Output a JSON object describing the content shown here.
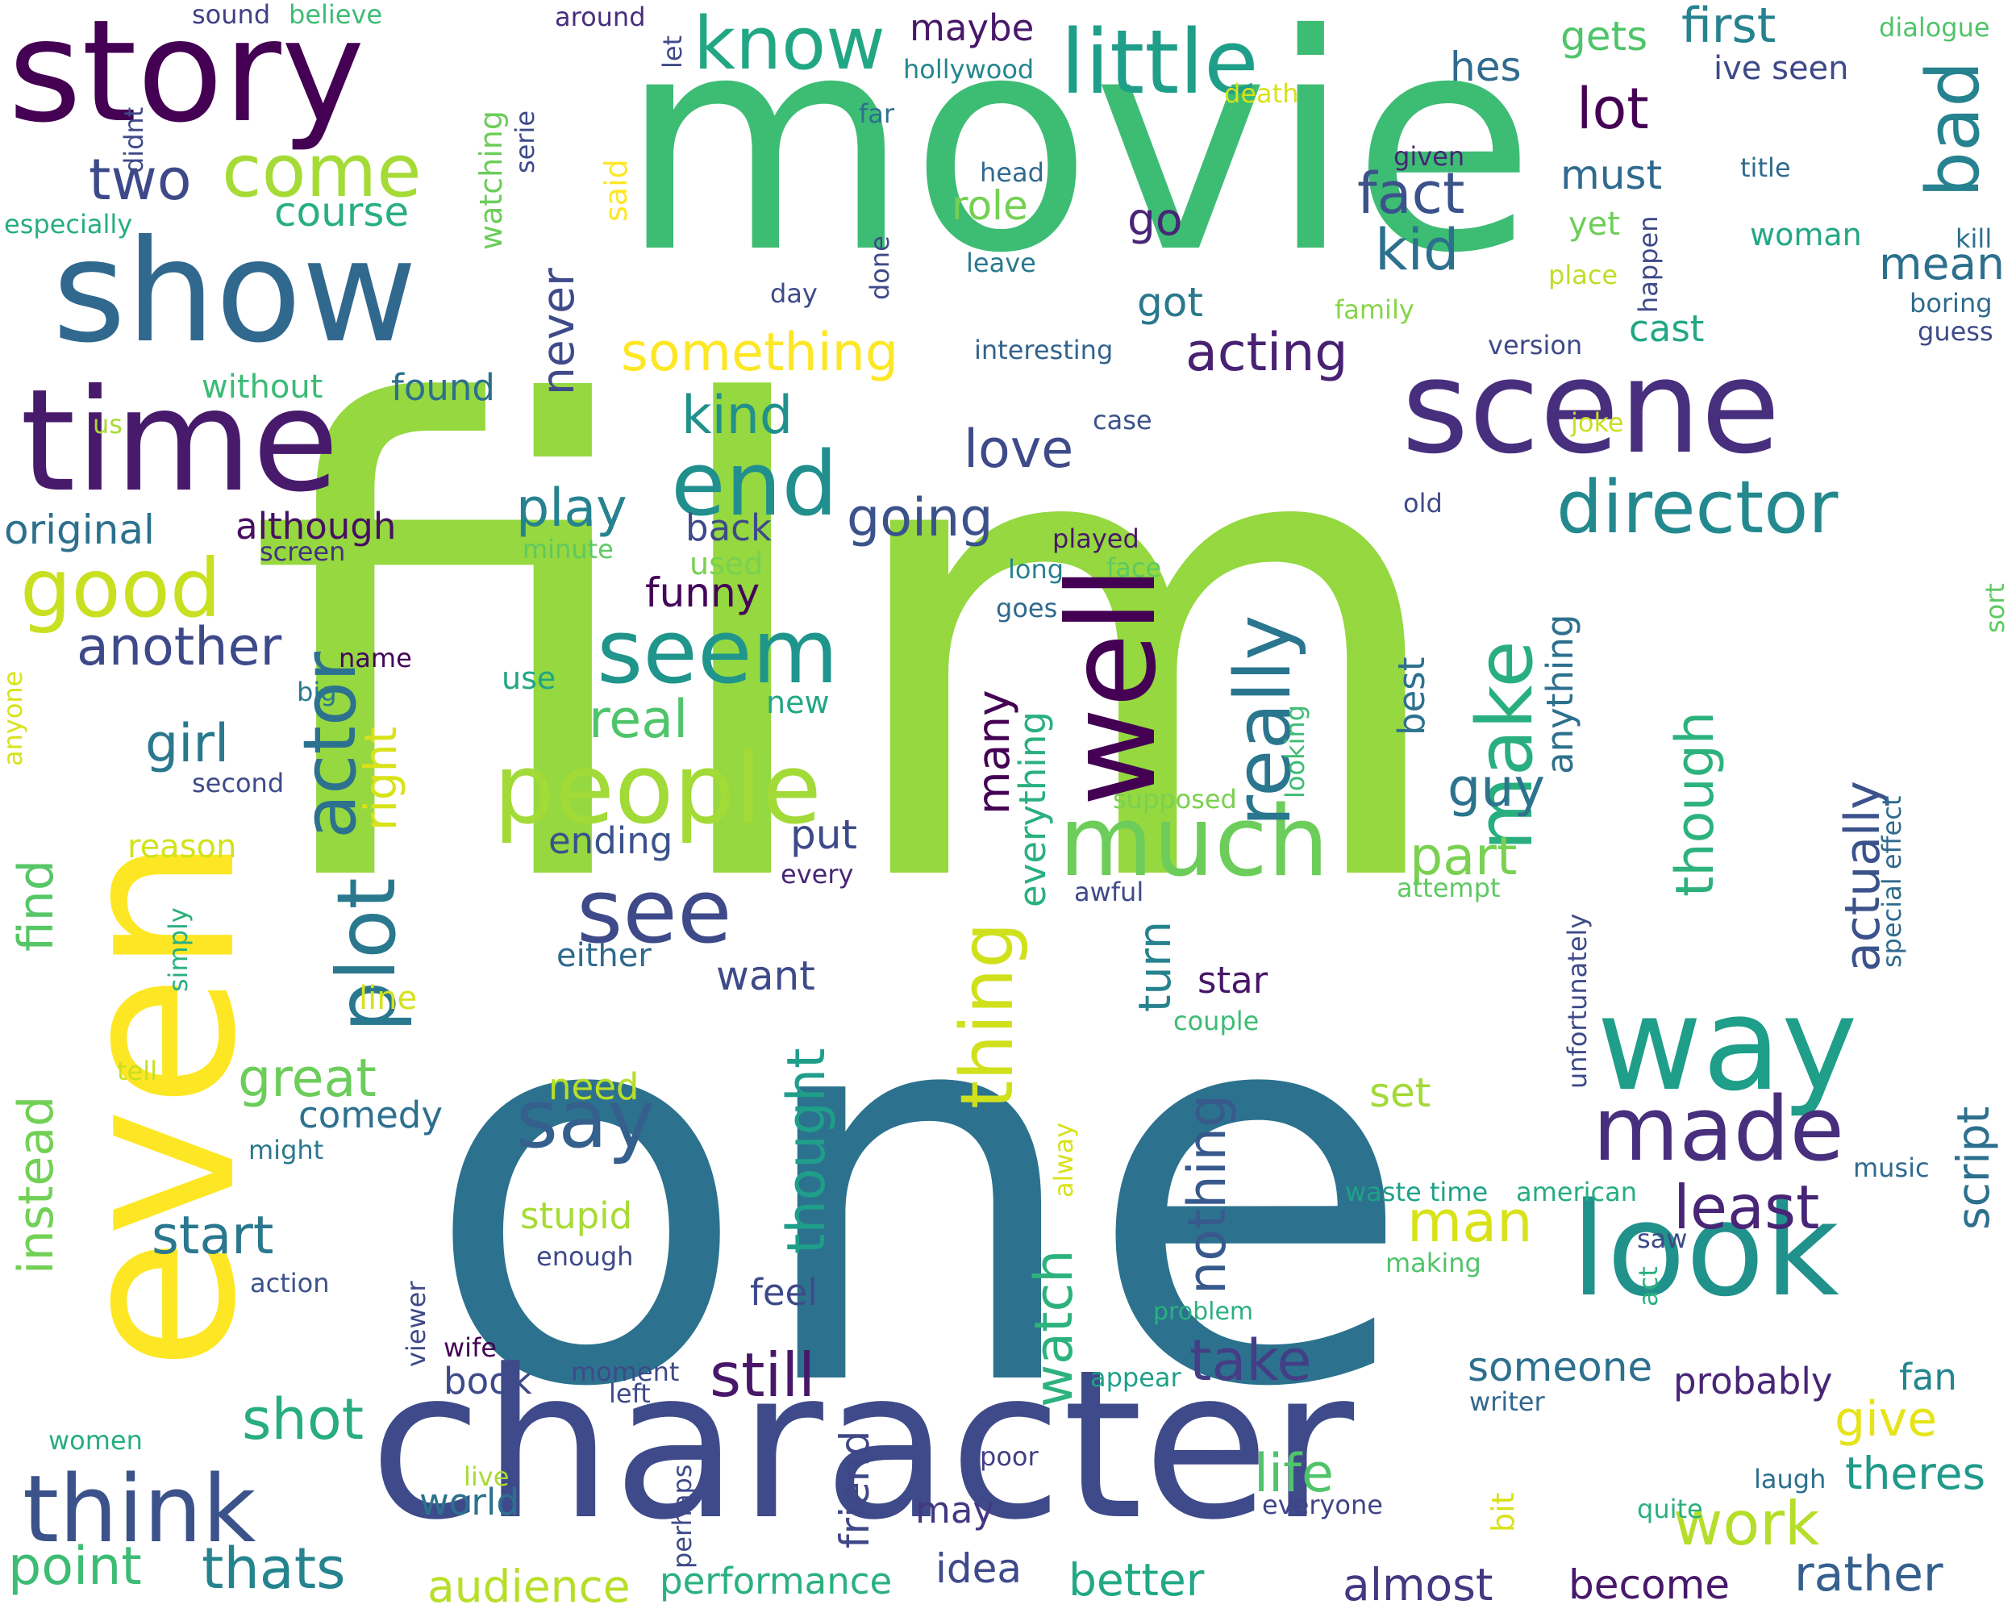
{
  "words": [
    {
      "t": "film",
      "c": "#95d840"
    },
    {
      "t": "one",
      "c": "#2c728e"
    },
    {
      "t": "movie",
      "c": "#3dbc74"
    },
    {
      "t": "even",
      "c": "#fde725"
    },
    {
      "t": "character",
      "c": "#3e4a89"
    },
    {
      "t": "story",
      "c": "#440154"
    },
    {
      "t": "well",
      "c": "#440154"
    },
    {
      "t": "show",
      "c": "#31688e"
    },
    {
      "t": "time",
      "c": "#481a6c"
    },
    {
      "t": "scene",
      "c": "#472f7d"
    },
    {
      "t": "look",
      "c": "#21918c"
    },
    {
      "t": "way",
      "c": "#1f9e89"
    },
    {
      "t": "think",
      "c": "#3b528b"
    },
    {
      "t": "people",
      "c": "#a2da37"
    },
    {
      "t": "much",
      "c": "#6ccd5a"
    },
    {
      "t": "made",
      "c": "#472f7d"
    },
    {
      "t": "seem",
      "c": "#1f958b"
    },
    {
      "t": "little",
      "c": "#1f9e89"
    },
    {
      "t": "end",
      "c": "#218f8d"
    },
    {
      "t": "see",
      "c": "#3e4a89"
    },
    {
      "t": "say",
      "c": "#355f8d"
    },
    {
      "t": "plot",
      "c": "#2a788e"
    },
    {
      "t": "good",
      "c": "#c8e020"
    },
    {
      "t": "make",
      "c": "#29af7f"
    },
    {
      "t": "really",
      "c": "#2a768e"
    },
    {
      "t": "thing",
      "c": "#d0e11c"
    },
    {
      "t": "know",
      "c": "#22a785"
    },
    {
      "t": "actor",
      "c": "#2c718e"
    },
    {
      "t": "director",
      "c": "#23898e"
    },
    {
      "t": "come",
      "c": "#a5db36"
    },
    {
      "t": "bad",
      "c": "#26828e"
    },
    {
      "t": "least",
      "c": "#482576"
    },
    {
      "t": "work",
      "c": "#b5de2b"
    },
    {
      "t": "still",
      "c": "#481769"
    },
    {
      "t": "take",
      "c": "#433e85"
    },
    {
      "t": "lot",
      "c": "#440154"
    },
    {
      "t": "fact",
      "c": "#3b528b"
    },
    {
      "t": "kid",
      "c": "#2d708e"
    },
    {
      "t": "two",
      "c": "#3e4989"
    },
    {
      "t": "shot",
      "c": "#27ad81"
    },
    {
      "t": "thats",
      "c": "#25838e"
    },
    {
      "t": "point",
      "c": "#3dbc74"
    },
    {
      "t": "man",
      "c": "#d8e219"
    },
    {
      "t": "acting",
      "c": "#482173"
    },
    {
      "t": "something",
      "c": "#fde725"
    },
    {
      "t": "going",
      "c": "#3b528b"
    },
    {
      "t": "love",
      "c": "#3e4a89"
    },
    {
      "t": "kind",
      "c": "#21918c"
    },
    {
      "t": "play",
      "c": "#26828e"
    },
    {
      "t": "another",
      "c": "#3e4989"
    },
    {
      "t": "great",
      "c": "#6ccd5a"
    },
    {
      "t": "start",
      "c": "#2a788e"
    },
    {
      "t": "girl",
      "c": "#2a788e"
    },
    {
      "t": "real",
      "c": "#50c46a"
    },
    {
      "t": "part",
      "c": "#7ad151"
    },
    {
      "t": "guy",
      "c": "#2c738e"
    },
    {
      "t": "life",
      "c": "#50c46a"
    },
    {
      "t": "give",
      "c": "#e5e419"
    },
    {
      "t": "theres",
      "c": "#1f9a8a"
    },
    {
      "t": "rather",
      "c": "#355f8d"
    },
    {
      "t": "better",
      "c": "#22a884"
    },
    {
      "t": "audience",
      "c": "#b8de29"
    },
    {
      "t": "almost",
      "c": "#453781"
    },
    {
      "t": "become",
      "c": "#48186a"
    },
    {
      "t": "performance",
      "c": "#2ab07f"
    },
    {
      "t": "idea",
      "c": "#3e4a89"
    },
    {
      "t": "mean",
      "c": "#2d708e"
    },
    {
      "t": "first",
      "c": "#26828e"
    },
    {
      "t": "must",
      "c": "#306a8e"
    },
    {
      "t": "go",
      "c": "#482576"
    },
    {
      "t": "got",
      "c": "#2a788e"
    },
    {
      "t": "cast",
      "c": "#22a785"
    },
    {
      "t": "someone",
      "c": "#2d708e"
    },
    {
      "t": "probably",
      "c": "#482576"
    },
    {
      "t": "funny",
      "c": "#450559"
    },
    {
      "t": "back",
      "c": "#3e4a89"
    },
    {
      "t": "role",
      "c": "#75d054"
    },
    {
      "t": "course",
      "c": "#29af7f"
    },
    {
      "t": "original",
      "c": "#2d708e"
    },
    {
      "t": "although",
      "c": "#471063"
    },
    {
      "t": "comedy",
      "c": "#2d708e"
    },
    {
      "t": "stupid",
      "c": "#a8db34"
    },
    {
      "t": "set",
      "c": "#a2da37"
    },
    {
      "t": "need",
      "c": "#b8de29"
    },
    {
      "t": "feel",
      "c": "#3e4a89"
    },
    {
      "t": "want",
      "c": "#3e4a89"
    },
    {
      "t": "star",
      "c": "#481668"
    },
    {
      "t": "put",
      "c": "#3e4a89"
    },
    {
      "t": "ending",
      "c": "#3b528b"
    },
    {
      "t": "either",
      "c": "#306a8e"
    },
    {
      "t": "book",
      "c": "#3e4a89"
    },
    {
      "t": "world",
      "c": "#2c728e"
    },
    {
      "t": "may",
      "c": "#453781"
    },
    {
      "t": "friend",
      "c": "#3f4788"
    },
    {
      "t": "many",
      "c": "#440154"
    },
    {
      "t": "thought",
      "c": "#1f9e89"
    },
    {
      "t": "watch",
      "c": "#2db27d"
    },
    {
      "t": "nothing",
      "c": "#38598c"
    },
    {
      "t": "turn",
      "c": "#26828e"
    },
    {
      "t": "everything",
      "c": "#2ab07f"
    },
    {
      "t": "actually",
      "c": "#3b528b"
    },
    {
      "t": "though",
      "c": "#2db27d"
    },
    {
      "t": "anything",
      "c": "#2d708e"
    },
    {
      "t": "best",
      "c": "#2d718e"
    },
    {
      "t": "script",
      "c": "#2d708e"
    },
    {
      "t": "find",
      "c": "#56c667"
    },
    {
      "t": "instead",
      "c": "#73d056"
    },
    {
      "t": "right",
      "c": "#d8e219"
    },
    {
      "t": "never",
      "c": "#3e4a89"
    },
    {
      "t": "without",
      "c": "#3bbb75"
    },
    {
      "t": "found",
      "c": "#2d708e"
    },
    {
      "t": "reason",
      "c": "#d2e21b"
    },
    {
      "t": "line",
      "c": "#d5e21a"
    },
    {
      "t": "fan",
      "c": "#24868e"
    },
    {
      "t": "hes",
      "c": "#306a8e"
    },
    {
      "t": "gets",
      "c": "#50c46a"
    },
    {
      "t": "maybe",
      "c": "#48186a"
    },
    {
      "t": "ive seen",
      "c": "#3e4989"
    },
    {
      "t": "yet",
      "c": "#6ece58"
    },
    {
      "t": "woman",
      "c": "#22a785"
    },
    {
      "t": "new",
      "c": "#22a785"
    },
    {
      "t": "use",
      "c": "#21a685"
    },
    {
      "t": "used",
      "c": "#7ad151"
    },
    {
      "t": "waste time",
      "c": "#1fa188"
    },
    {
      "t": "american",
      "c": "#26ad81"
    },
    {
      "t": "making",
      "c": "#50c46a"
    },
    {
      "t": "problem",
      "c": "#2ab07f"
    },
    {
      "t": "appear",
      "c": "#1fa188"
    },
    {
      "t": "everyone",
      "c": "#414487"
    },
    {
      "t": "quite",
      "c": "#2ab07f"
    },
    {
      "t": "laugh",
      "c": "#2d708e"
    },
    {
      "t": "writer",
      "c": "#31688e"
    },
    {
      "t": "poor",
      "c": "#433e85"
    },
    {
      "t": "moment",
      "c": "#3e4a89"
    },
    {
      "t": "left",
      "c": "#3e4a89"
    },
    {
      "t": "enough",
      "c": "#3e4a89"
    },
    {
      "t": "wife",
      "c": "#440154"
    },
    {
      "t": "action",
      "c": "#3b528b"
    },
    {
      "t": "might",
      "c": "#2a788e"
    },
    {
      "t": "tell",
      "c": "#c8e020"
    },
    {
      "t": "women",
      "c": "#27ad81"
    },
    {
      "t": "live",
      "c": "#a8db34"
    },
    {
      "t": "second",
      "c": "#3e4a89"
    },
    {
      "t": "big",
      "c": "#2a788e"
    },
    {
      "t": "name",
      "c": "#450559"
    },
    {
      "t": "screen",
      "c": "#46327e"
    },
    {
      "t": "minute",
      "c": "#5ec962"
    },
    {
      "t": "played",
      "c": "#48186a"
    },
    {
      "t": "face",
      "c": "#5ec962"
    },
    {
      "t": "long",
      "c": "#26828e"
    },
    {
      "t": "goes",
      "c": "#306a8e"
    },
    {
      "t": "old",
      "c": "#3e4a89"
    },
    {
      "t": "case",
      "c": "#3b528b"
    },
    {
      "t": "joke",
      "c": "#c8e020"
    },
    {
      "t": "interesting",
      "c": "#33638d"
    },
    {
      "t": "version",
      "c": "#3e4989"
    },
    {
      "t": "family",
      "c": "#86d549"
    },
    {
      "t": "place",
      "c": "#bddf26"
    },
    {
      "t": "day",
      "c": "#3e4a89"
    },
    {
      "t": "leave",
      "c": "#2a788e"
    },
    {
      "t": "head",
      "c": "#306a8e"
    },
    {
      "t": "given",
      "c": "#482576"
    },
    {
      "t": "title",
      "c": "#306a8e"
    },
    {
      "t": "kill",
      "c": "#2d708e"
    },
    {
      "t": "boring",
      "c": "#306a8e"
    },
    {
      "t": "guess",
      "c": "#3e4a89"
    },
    {
      "t": "dialogue",
      "c": "#50c46a"
    },
    {
      "t": "death",
      "c": "#d8e219"
    },
    {
      "t": "far",
      "c": "#2d708e"
    },
    {
      "t": "hollywood",
      "c": "#24868e"
    },
    {
      "t": "around",
      "c": "#472f7d"
    },
    {
      "t": "sound",
      "c": "#433e85"
    },
    {
      "t": "believe",
      "c": "#3dbc74"
    },
    {
      "t": "especially",
      "c": "#27ad81"
    },
    {
      "t": "us",
      "c": "#a8db34"
    },
    {
      "t": "supposed",
      "c": "#7ad151"
    },
    {
      "t": "awful",
      "c": "#3e4a89"
    },
    {
      "t": "attempt",
      "c": "#5ec962"
    },
    {
      "t": "couple",
      "c": "#3dbc74"
    },
    {
      "t": "music",
      "c": "#306a8e"
    },
    {
      "t": "saw",
      "c": "#3e4a89"
    },
    {
      "t": "watching",
      "c": "#6ccd5a"
    },
    {
      "t": "said",
      "c": "#fde725"
    },
    {
      "t": "serie",
      "c": "#3e4a89"
    },
    {
      "t": "didnt",
      "c": "#3e4a89"
    },
    {
      "t": "let",
      "c": "#3e4a89"
    },
    {
      "t": "done",
      "c": "#3e4a89"
    },
    {
      "t": "happen",
      "c": "#3e4a89"
    },
    {
      "t": "anyone",
      "c": "#d8e219"
    },
    {
      "t": "simply",
      "c": "#2ab07f"
    },
    {
      "t": "viewer",
      "c": "#3e4a89"
    },
    {
      "t": "perhaps",
      "c": "#3e4a89"
    },
    {
      "t": "bit",
      "c": "#d8e219"
    },
    {
      "t": "act",
      "c": "#2ab07f"
    },
    {
      "t": "alway",
      "c": "#d8e219"
    },
    {
      "t": "looking",
      "c": "#3dbc74"
    },
    {
      "t": "every",
      "c": "#482576"
    },
    {
      "t": "unfortunately",
      "c": "#3e4a89"
    },
    {
      "t": "special effect",
      "c": "#306a8e"
    },
    {
      "t": "sort",
      "c": "#5ec962"
    }
  ]
}
